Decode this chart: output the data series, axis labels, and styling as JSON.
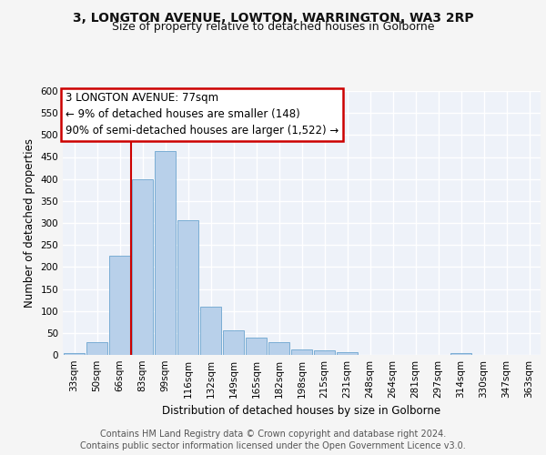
{
  "title1": "3, LONGTON AVENUE, LOWTON, WARRINGTON, WA3 2RP",
  "title2": "Size of property relative to detached houses in Golborne",
  "xlabel": "Distribution of detached houses by size in Golborne",
  "ylabel": "Number of detached properties",
  "categories": [
    "33sqm",
    "50sqm",
    "66sqm",
    "83sqm",
    "99sqm",
    "116sqm",
    "132sqm",
    "149sqm",
    "165sqm",
    "182sqm",
    "198sqm",
    "215sqm",
    "231sqm",
    "248sqm",
    "264sqm",
    "281sqm",
    "297sqm",
    "314sqm",
    "330sqm",
    "347sqm",
    "363sqm"
  ],
  "values": [
    5,
    30,
    225,
    400,
    463,
    307,
    110,
    55,
    39,
    28,
    13,
    11,
    6,
    0,
    0,
    0,
    0,
    5,
    0,
    0,
    0
  ],
  "bar_color": "#b8d0ea",
  "bar_edge_color": "#7aadd4",
  "vline_color": "#cc0000",
  "annotation_text": "3 LONGTON AVENUE: 77sqm\n← 9% of detached houses are smaller (148)\n90% of semi-detached houses are larger (1,522) →",
  "annotation_box_color": "#ffffff",
  "annotation_box_edge_color": "#cc0000",
  "ylim": [
    0,
    600
  ],
  "yticks": [
    0,
    50,
    100,
    150,
    200,
    250,
    300,
    350,
    400,
    450,
    500,
    550,
    600
  ],
  "footer1": "Contains HM Land Registry data © Crown copyright and database right 2024.",
  "footer2": "Contains public sector information licensed under the Open Government Licence v3.0.",
  "bg_color": "#eef2f9",
  "grid_color": "#ffffff",
  "title1_fontsize": 10,
  "title2_fontsize": 9,
  "axis_label_fontsize": 8.5,
  "tick_fontsize": 7.5,
  "annotation_fontsize": 8.5,
  "footer_fontsize": 7
}
